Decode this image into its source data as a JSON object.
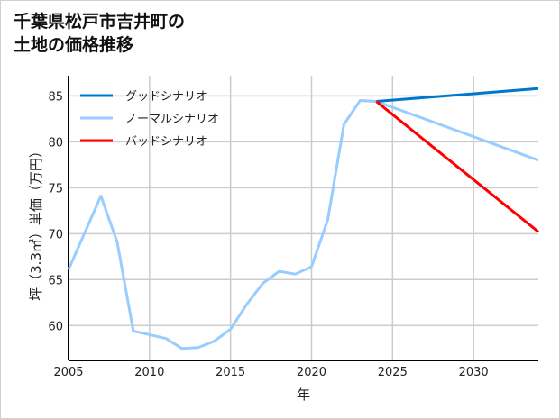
{
  "chart_data": {
    "type": "line",
    "title": "千葉県松戸市吉井町の\n土地の価格推移",
    "xlabel": "年",
    "ylabel": "坪（3.3㎡）単価（万円）",
    "xlim": [
      2005,
      2034
    ],
    "ylim": [
      56.2,
      87.2
    ],
    "xticks": [
      2005,
      2010,
      2015,
      2020,
      2025,
      2030
    ],
    "yticks": [
      60,
      65,
      70,
      75,
      80,
      85
    ],
    "grid": true,
    "legend_position": "top-left",
    "series": [
      {
        "name": "グッドシナリオ",
        "color": "#0077cc",
        "x": [
          2024,
          2034
        ],
        "y": [
          84.4,
          85.8
        ]
      },
      {
        "name": "ノーマルシナリオ",
        "color": "#99ccff",
        "x": [
          2005,
          2006,
          2007,
          2008,
          2009,
          2010,
          2011,
          2012,
          2013,
          2014,
          2015,
          2016,
          2017,
          2018,
          2019,
          2020,
          2021,
          2022,
          2023,
          2024,
          2034
        ],
        "y": [
          66.1,
          70.1,
          74.1,
          69.1,
          59.4,
          59.0,
          58.6,
          57.5,
          57.6,
          58.3,
          59.6,
          62.3,
          64.6,
          65.9,
          65.6,
          66.4,
          71.5,
          81.9,
          84.5,
          84.4,
          78.0
        ]
      },
      {
        "name": "バッドシナリオ",
        "color": "#ff0000",
        "x": [
          2024,
          2034
        ],
        "y": [
          84.4,
          70.2
        ]
      }
    ]
  }
}
